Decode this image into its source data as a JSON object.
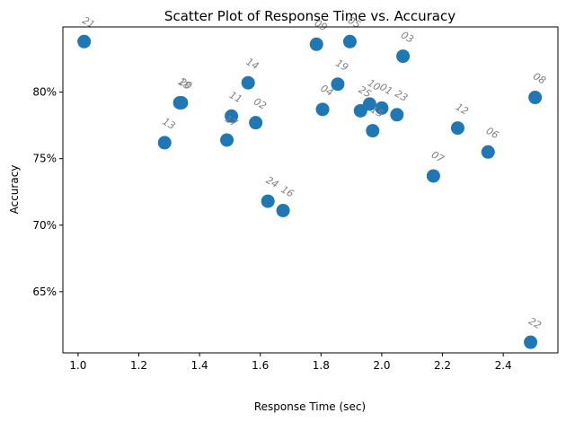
{
  "chart_data": {
    "type": "scatter",
    "title": "Scatter Plot of Response Time vs. Accuracy",
    "xlabel": "Response Time (sec)",
    "ylabel": "Accuracy",
    "xlim": [
      0.95,
      2.58
    ],
    "ylim": [
      0.604,
      0.849
    ],
    "x_ticks": [
      1.0,
      1.2,
      1.4,
      1.6,
      1.8,
      2.0,
      2.2,
      2.4
    ],
    "x_tick_labels": [
      "1.0",
      "1.2",
      "1.4",
      "1.6",
      "1.8",
      "2.0",
      "2.2",
      "2.4"
    ],
    "y_ticks": [
      0.65,
      0.7,
      0.75,
      0.8
    ],
    "y_tick_labels": [
      "65%",
      "70%",
      "75%",
      "80%"
    ],
    "grid": false,
    "color": "#1f77b4",
    "label_color": "#808080",
    "points": [
      {
        "label": "21",
        "x": 1.02,
        "y": 0.838
      },
      {
        "label": "18",
        "x": 1.335,
        "y": 0.792
      },
      {
        "label": "20",
        "x": 1.34,
        "y": 0.792
      },
      {
        "label": "13",
        "x": 1.285,
        "y": 0.762
      },
      {
        "label": "11",
        "x": 1.505,
        "y": 0.782
      },
      {
        "label": "17",
        "x": 1.49,
        "y": 0.764
      },
      {
        "label": "14",
        "x": 1.56,
        "y": 0.807
      },
      {
        "label": "02",
        "x": 1.585,
        "y": 0.777
      },
      {
        "label": "24",
        "x": 1.625,
        "y": 0.718
      },
      {
        "label": "16",
        "x": 1.675,
        "y": 0.711
      },
      {
        "label": "09",
        "x": 1.785,
        "y": 0.836
      },
      {
        "label": "04",
        "x": 1.805,
        "y": 0.787
      },
      {
        "label": "19",
        "x": 1.855,
        "y": 0.806
      },
      {
        "label": "05",
        "x": 1.895,
        "y": 0.838
      },
      {
        "label": "25",
        "x": 1.93,
        "y": 0.786
      },
      {
        "label": "10",
        "x": 1.96,
        "y": 0.791
      },
      {
        "label": "15",
        "x": 1.97,
        "y": 0.771
      },
      {
        "label": "01",
        "x": 2.0,
        "y": 0.788
      },
      {
        "label": "23",
        "x": 2.05,
        "y": 0.783
      },
      {
        "label": "03",
        "x": 2.07,
        "y": 0.827
      },
      {
        "label": "07",
        "x": 2.17,
        "y": 0.737
      },
      {
        "label": "12",
        "x": 2.25,
        "y": 0.773
      },
      {
        "label": "06",
        "x": 2.35,
        "y": 0.755
      },
      {
        "label": "22",
        "x": 2.49,
        "y": 0.612
      },
      {
        "label": "08",
        "x": 2.505,
        "y": 0.796
      }
    ]
  }
}
